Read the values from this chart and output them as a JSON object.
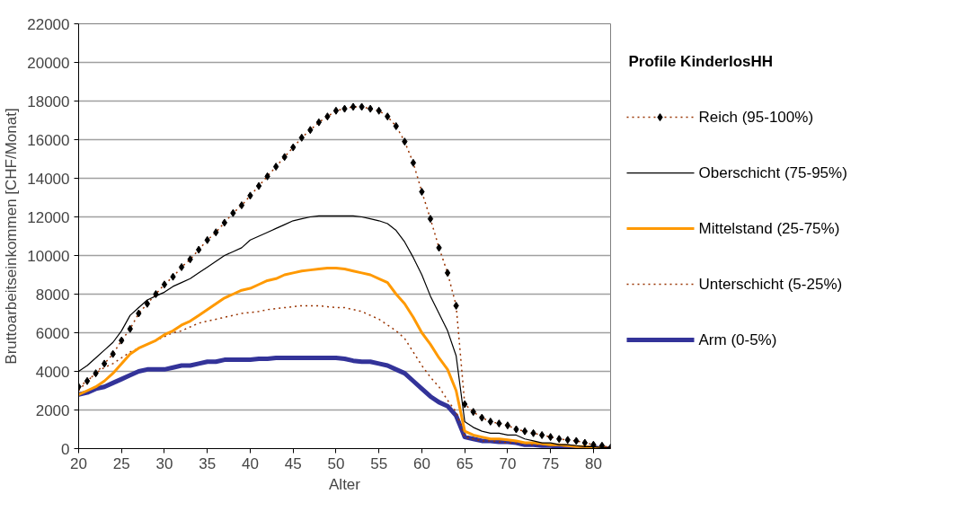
{
  "chart_data": {
    "type": "line",
    "xlabel": "Alter",
    "ylabel": "Bruttoarbeitseinkommen [CHF/Monat]",
    "legend_title": "Profile KinderlosHH",
    "x": [
      20,
      21,
      22,
      23,
      24,
      25,
      26,
      27,
      28,
      29,
      30,
      31,
      32,
      33,
      34,
      35,
      36,
      37,
      38,
      39,
      40,
      41,
      42,
      43,
      44,
      45,
      46,
      47,
      48,
      49,
      50,
      51,
      52,
      53,
      54,
      55,
      56,
      57,
      58,
      59,
      60,
      61,
      62,
      63,
      64,
      65,
      66,
      67,
      68,
      69,
      70,
      71,
      72,
      73,
      74,
      75,
      76,
      77,
      78,
      79,
      80,
      81,
      82
    ],
    "series": [
      {
        "name": "Reich (95-100%)",
        "color": "#993300",
        "marker": "diamond",
        "line_style": "dotted",
        "values": [
          3200,
          3500,
          3900,
          4400,
          4900,
          5600,
          6200,
          7000,
          7500,
          8000,
          8500,
          8900,
          9400,
          9800,
          10300,
          10800,
          11200,
          11700,
          12200,
          12600,
          13100,
          13600,
          14100,
          14600,
          15100,
          15600,
          16100,
          16500,
          16900,
          17200,
          17500,
          17600,
          17700,
          17700,
          17600,
          17500,
          17200,
          16700,
          15900,
          14800,
          13300,
          11900,
          10400,
          9100,
          7400,
          2300,
          1900,
          1600,
          1400,
          1300,
          1200,
          1000,
          900,
          800,
          700,
          600,
          500,
          450,
          400,
          300,
          200,
          150,
          50
        ]
      },
      {
        "name": "Oberschicht (75-95%)",
        "color": "#000000",
        "marker": "none",
        "line_style": "solid",
        "values": [
          4000,
          4300,
          4700,
          5100,
          5500,
          6100,
          6900,
          7300,
          7700,
          7900,
          8100,
          8400,
          8600,
          8800,
          9100,
          9400,
          9700,
          10000,
          10200,
          10400,
          10800,
          11000,
          11200,
          11400,
          11600,
          11800,
          11900,
          12000,
          12050,
          12050,
          12050,
          12050,
          12050,
          12000,
          11900,
          11800,
          11650,
          11300,
          10700,
          9900,
          9000,
          7900,
          7000,
          6100,
          4800,
          1400,
          1100,
          900,
          800,
          800,
          700,
          700,
          500,
          400,
          300,
          300,
          200,
          200,
          150,
          100,
          100,
          50,
          50
        ]
      },
      {
        "name": "Mittelstand (25-75%)",
        "color": "#ff9900",
        "marker": "none",
        "line_style": "solid",
        "values": [
          2800,
          3000,
          3200,
          3500,
          3900,
          4400,
          4900,
          5200,
          5400,
          5600,
          5900,
          6100,
          6400,
          6600,
          6900,
          7200,
          7500,
          7800,
          8000,
          8200,
          8300,
          8500,
          8700,
          8800,
          9000,
          9100,
          9200,
          9250,
          9300,
          9350,
          9350,
          9300,
          9200,
          9100,
          9000,
          8800,
          8600,
          8000,
          7500,
          6800,
          6000,
          5400,
          4700,
          4100,
          3000,
          900,
          700,
          600,
          500,
          500,
          450,
          400,
          300,
          300,
          250,
          200,
          200,
          150,
          100,
          100,
          50,
          50,
          0
        ]
      },
      {
        "name": "Unterschicht (5-25%)",
        "color": "#993300",
        "marker": "none",
        "line_style": "dotted",
        "values": [
          3000,
          3500,
          3900,
          4200,
          4400,
          4700,
          5000,
          5200,
          5400,
          5600,
          5800,
          6000,
          6100,
          6300,
          6500,
          6600,
          6700,
          6800,
          6900,
          7000,
          7050,
          7100,
          7200,
          7250,
          7300,
          7350,
          7400,
          7400,
          7400,
          7350,
          7300,
          7300,
          7200,
          7100,
          6900,
          6700,
          6400,
          6100,
          5700,
          5000,
          4300,
          3700,
          3200,
          2500,
          1900,
          600,
          500,
          400,
          400,
          350,
          300,
          300,
          250,
          200,
          200,
          150,
          150,
          100,
          100,
          50,
          50,
          0,
          0
        ]
      },
      {
        "name": "Arm (0-5%)",
        "color": "#333399",
        "marker": "none",
        "line_style": "solid",
        "values": [
          2800,
          2900,
          3100,
          3200,
          3400,
          3600,
          3800,
          4000,
          4100,
          4100,
          4100,
          4200,
          4300,
          4300,
          4400,
          4500,
          4500,
          4600,
          4600,
          4600,
          4600,
          4650,
          4650,
          4700,
          4700,
          4700,
          4700,
          4700,
          4700,
          4700,
          4700,
          4650,
          4550,
          4500,
          4500,
          4400,
          4300,
          4100,
          3900,
          3500,
          3100,
          2700,
          2400,
          2200,
          1700,
          600,
          500,
          400,
          400,
          350,
          350,
          300,
          200,
          200,
          150,
          150,
          100,
          100,
          50,
          50,
          50,
          0,
          0
        ]
      }
    ],
    "xlim": [
      20,
      82
    ],
    "xticks": [
      20,
      25,
      30,
      35,
      40,
      45,
      50,
      55,
      60,
      65,
      70,
      75,
      80
    ],
    "ylim": [
      0,
      22000
    ],
    "yticks": [
      0,
      2000,
      4000,
      6000,
      8000,
      10000,
      12000,
      14000,
      16000,
      18000,
      20000,
      22000
    ],
    "grid": "y",
    "legend": "right"
  }
}
